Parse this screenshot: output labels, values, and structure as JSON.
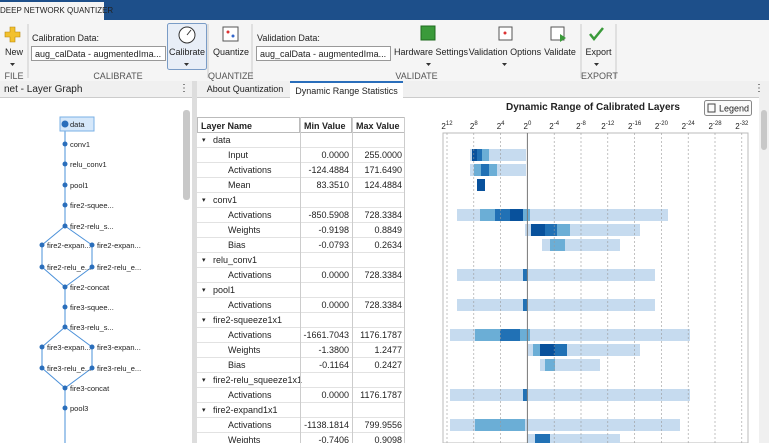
{
  "header": {
    "title": "DEEP NETWORK QUANTIZER"
  },
  "toolbar": {
    "new": "New",
    "calibration_data_label": "Calibration Data:",
    "calibration_data": "aug_calData - augmentedIma...",
    "calibrate": "Calibrate",
    "quantize": "Quantize",
    "validation_data_label": "Validation Data:",
    "validation_data": "aug_calData - augmentedIma...",
    "hardware_settings": "Hardware Settings",
    "validation_options": "Validation Options",
    "validate": "Validate",
    "export": "Export",
    "sections": [
      "FILE",
      "CALIBRATE",
      "QUANTIZE",
      "VALIDATE",
      "EXPORT"
    ]
  },
  "layer_graph": {
    "title": "net - Layer Graph",
    "nodes": [
      "data",
      "conv1",
      "relu_conv1",
      "pool1",
      "fire2-squee...",
      "fire2-relu_s...",
      "fire2-expan...",
      "fire2-expan...",
      "fire2-relu_e...",
      "fire2-relu_e...",
      "fire2-concat",
      "fire3-squee...",
      "fire3-relu_s...",
      "fire3-expan...",
      "fire3-expan...",
      "fire3-relu_e...",
      "fire3-relu_e...",
      "fire3-concat",
      "pool3"
    ]
  },
  "tabs": [
    "About Quantization",
    "Dynamic Range Statistics"
  ],
  "table": {
    "columns": [
      "Layer Name",
      "Min Value",
      "Max Value"
    ],
    "rows": [
      {
        "name": "data"
      },
      {
        "name": "Input",
        "min": "0.0000",
        "max": "255.0000"
      },
      {
        "name": "Activations",
        "min": "-124.4884",
        "max": "171.6490"
      },
      {
        "name": "Mean",
        "min": "83.3510",
        "max": "124.4884"
      },
      {
        "name": "conv1"
      },
      {
        "name": "Activations",
        "min": "-850.5908",
        "max": "728.3384"
      },
      {
        "name": "Weights",
        "min": "-0.9198",
        "max": "0.8849"
      },
      {
        "name": "Bias",
        "min": "-0.0793",
        "max": "0.2634"
      },
      {
        "name": "relu_conv1"
      },
      {
        "name": "Activations",
        "min": "0.0000",
        "max": "728.3384"
      },
      {
        "name": "pool1"
      },
      {
        "name": "Activations",
        "min": "0.0000",
        "max": "728.3384"
      },
      {
        "name": "fire2-squeeze1x1"
      },
      {
        "name": "Activations",
        "min": "-1661.7043",
        "max": "1176.1787"
      },
      {
        "name": "Weights",
        "min": "-1.3800",
        "max": "1.2477"
      },
      {
        "name": "Bias",
        "min": "-0.1164",
        "max": "0.2427"
      },
      {
        "name": "fire2-relu_squeeze1x1"
      },
      {
        "name": "Activations",
        "min": "0.0000",
        "max": "1176.1787"
      },
      {
        "name": "fire2-expand1x1"
      },
      {
        "name": "Activations",
        "min": "-1138.1814",
        "max": "799.9556"
      },
      {
        "name": "Weights",
        "min": "-0.7406",
        "max": "0.9098"
      }
    ]
  },
  "dynamic_range": {
    "title": "Dynamic Range of Calibrated Layers",
    "legend_button": "Legend",
    "ticks": [
      {
        "base": "2",
        "exp": "12"
      },
      {
        "base": "2",
        "exp": "8"
      },
      {
        "base": "2",
        "exp": "4"
      },
      {
        "base": "2",
        "exp": "0"
      },
      {
        "base": "2",
        "exp": "-4"
      },
      {
        "base": "2",
        "exp": "-8"
      },
      {
        "base": "2",
        "exp": "-12"
      },
      {
        "base": "2",
        "exp": "-16"
      },
      {
        "base": "2",
        "exp": "-20"
      },
      {
        "base": "2",
        "exp": "-24"
      },
      {
        "base": "2",
        "exp": "-28"
      },
      {
        "base": "2",
        "exp": "-32"
      }
    ]
  }
}
